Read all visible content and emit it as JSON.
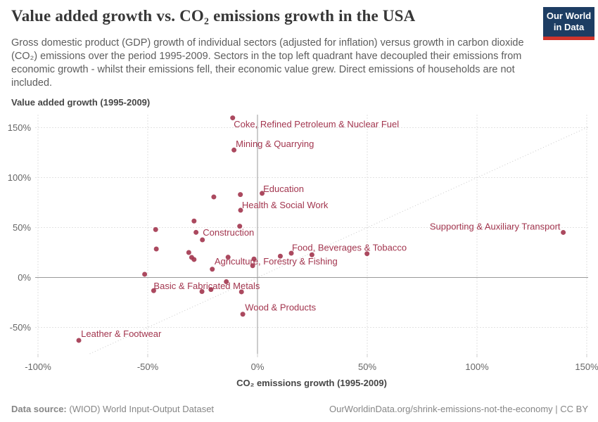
{
  "header": {
    "title": "Value added growth vs. CO₂ emissions growth in the USA",
    "subtitle": "Gross domestic product (GDP) growth of individual sectors (adjusted for inflation) versus growth in carbon dioxide (CO₂) emissions over the period 1995-2009. Sectors in the top left quadrant have decoupled their emissions from economic growth - whilst their emissions fell, their economic value grew. Direct emissions of households are not included.",
    "logo": {
      "line1": "Our World",
      "line2": "in Data"
    }
  },
  "chart_data": {
    "type": "scatter",
    "xlabel": "CO₂ emissions growth (1995-2009)",
    "ylabel": "Value added growth (1995-2009)",
    "unit": "%",
    "x_ticks": [
      -100,
      -50,
      0,
      50,
      100,
      150
    ],
    "y_ticks": [
      -50,
      0,
      50,
      100,
      150
    ],
    "xlim": [
      -101,
      151
    ],
    "ylim": [
      -77,
      163
    ],
    "grid": true,
    "reference_line": "y = x",
    "points": [
      {
        "x": -11.3,
        "y": 159.8,
        "label": "Coke, Refined Petroleum & Nuclear Fuel",
        "lx": -10.8,
        "ly": 153.4
      },
      {
        "x": -10.7,
        "y": 127.6,
        "label": "Mining & Quarrying",
        "lx": -9.9,
        "ly": 133.9
      },
      {
        "x": 2.1,
        "y": 84.2,
        "label": "Education",
        "lx": 2.6,
        "ly": 88.9
      },
      {
        "x": -7.8,
        "y": 83.0
      },
      {
        "x": -7.7,
        "y": 67.3,
        "label": "Health & Social Work",
        "lx": -7.1,
        "ly": 72.4
      },
      {
        "x": -19.9,
        "y": 80.6
      },
      {
        "x": -28.9,
        "y": 56.5
      },
      {
        "x": -46.4,
        "y": 48.0
      },
      {
        "x": -28.0,
        "y": 45.2,
        "label": "Construction",
        "lx": -24.9,
        "ly": 44.9
      },
      {
        "x": -25.1,
        "y": 37.7
      },
      {
        "x": -8.1,
        "y": 51.3
      },
      {
        "x": -46.1,
        "y": 28.5
      },
      {
        "x": -31.3,
        "y": 25.0
      },
      {
        "x": -30.0,
        "y": 20.1
      },
      {
        "x": -28.9,
        "y": 18.0
      },
      {
        "x": -13.4,
        "y": 20.3
      },
      {
        "x": -1.6,
        "y": 18.5
      },
      {
        "x": -2.2,
        "y": 11.8,
        "label": "Agriculture, Forestry & Fishing",
        "lx": -19.6,
        "ly": 16.3
      },
      {
        "x": 10.4,
        "y": 21.3
      },
      {
        "x": 15.4,
        "y": 24.3,
        "label": "Food, Beverages & Tobacco",
        "lx": 15.7,
        "ly": 29.9
      },
      {
        "x": 24.8,
        "y": 22.7
      },
      {
        "x": 49.9,
        "y": 23.8
      },
      {
        "x": -20.6,
        "y": 8.3
      },
      {
        "x": -51.4,
        "y": 3.2
      },
      {
        "x": -47.3,
        "y": -13.2,
        "label": "Basic & Fabricated Metals",
        "lx": -47.3,
        "ly": -8.3
      },
      {
        "x": -25.3,
        "y": -14.1
      },
      {
        "x": -21.2,
        "y": -12.1
      },
      {
        "x": -14.2,
        "y": -4.2
      },
      {
        "x": -7.3,
        "y": -14.4
      },
      {
        "x": -6.7,
        "y": -36.8,
        "label": "Wood & Products",
        "lx": -5.7,
        "ly": -30.1
      },
      {
        "x": -81.4,
        "y": -63.0,
        "label": "Leather & Footwear",
        "lx": -80.4,
        "ly": -56.5
      },
      {
        "x": 139.3,
        "y": 45.1,
        "label": "Supporting & Auxiliary Transport",
        "lx": 138.0,
        "ly": 50.9,
        "anchor": "end"
      }
    ]
  },
  "footer": {
    "source_label": "Data source:",
    "source_value": "(WIOD) World Input-Output Dataset",
    "license": "OurWorldinData.org/shrink-emissions-not-the-economy | CC BY"
  },
  "colors": {
    "accent": "#a2354e",
    "grid": "#e2e2e2",
    "zero_line": "#9a9a9a",
    "tick_mark": "#cccccc",
    "diagonal": "#c9c9c9",
    "tick_text": "#666666",
    "axis_title": "#454545",
    "logo_bg": "#1d3d63",
    "logo_red": "#d0342c"
  }
}
